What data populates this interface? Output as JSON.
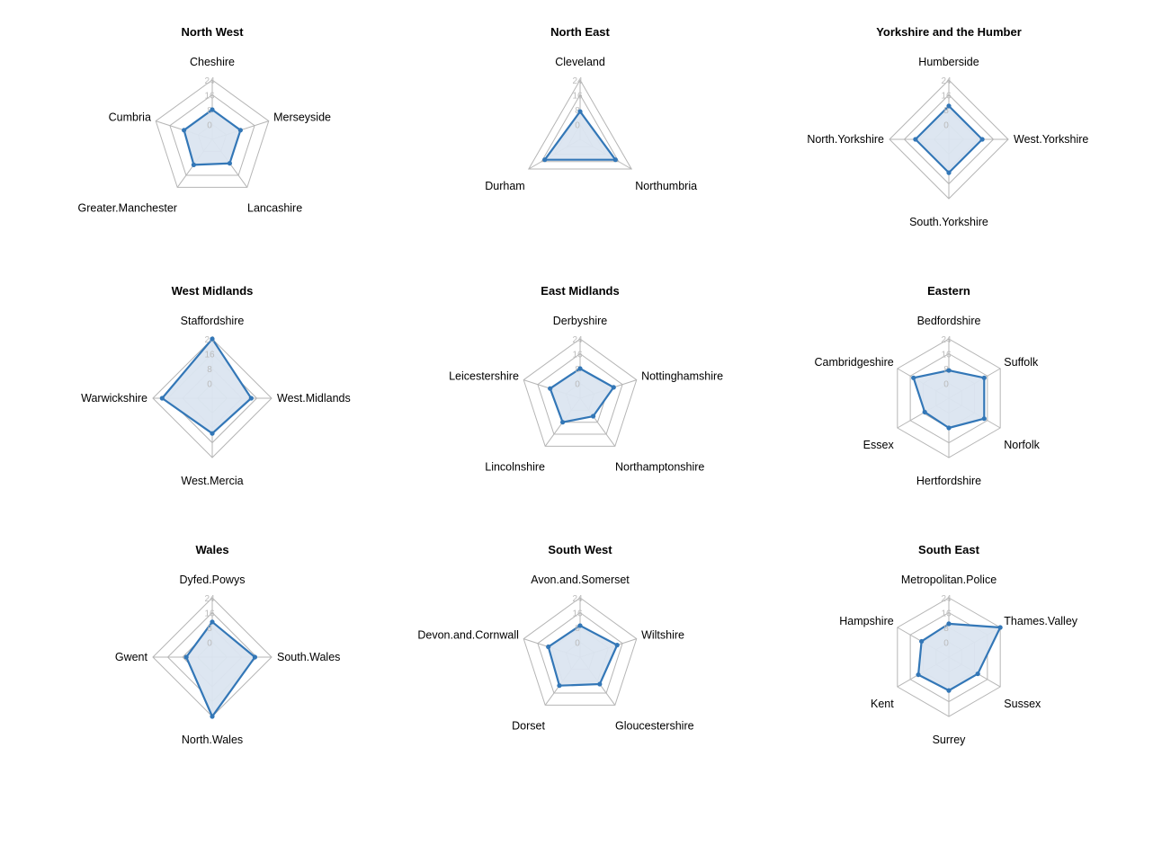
{
  "colors": {
    "series": "#3377b7",
    "fill": "#dbe5f0",
    "grid": "#b5b5b5",
    "tick": "#bbbbbb"
  },
  "chart_data": [
    {
      "type": "radar",
      "title": "North West",
      "rlim": [
        -8,
        24
      ],
      "ticks": [
        "0",
        "8",
        "16",
        "24"
      ],
      "axes": [
        "Cheshire",
        "Merseyside",
        "Lancashire",
        "Greater.Manchester",
        "Cumbria"
      ],
      "values": [
        8,
        8,
        8,
        9,
        8
      ]
    },
    {
      "type": "radar",
      "title": "North East",
      "rlim": [
        -8,
        24
      ],
      "ticks": [
        "0",
        "8",
        "16",
        "24"
      ],
      "axes": [
        "Cleveland",
        "Northumbria",
        "Durham"
      ],
      "values": [
        7,
        14,
        14
      ]
    },
    {
      "type": "radar",
      "title": "Yorkshire and the Humber",
      "rlim": [
        -8,
        24
      ],
      "ticks": [
        "0",
        "8",
        "16",
        "24"
      ],
      "axes": [
        "Humberside",
        "West.Yorkshire",
        "South.Yorkshire",
        "North.Yorkshire"
      ],
      "values": [
        10,
        10,
        10,
        10
      ]
    },
    {
      "type": "radar",
      "title": "West Midlands",
      "rlim": [
        -8,
        24
      ],
      "ticks": [
        "0",
        "8",
        "16",
        "24"
      ],
      "axes": [
        "Staffordshire",
        "West.Midlands",
        "West.Mercia",
        "Warwickshire"
      ],
      "values": [
        24,
        13,
        11,
        19
      ]
    },
    {
      "type": "radar",
      "title": "East Midlands",
      "rlim": [
        -8,
        24
      ],
      "ticks": [
        "0",
        "8",
        "16",
        "24"
      ],
      "axes": [
        "Derbyshire",
        "Nottinghamshire",
        "Northamptonshire",
        "Lincolnshire",
        "Leicestershire"
      ],
      "values": [
        8,
        11,
        4,
        8,
        9
      ]
    },
    {
      "type": "radar",
      "title": "Eastern",
      "rlim": [
        -8,
        24
      ],
      "ticks": [
        "0",
        "8",
        "16",
        "24"
      ],
      "axes": [
        "Bedfordshire",
        "Suffolk",
        "Norfolk",
        "Hertfordshire",
        "Essex",
        "Cambridgeshire"
      ],
      "values": [
        7,
        14,
        14,
        8,
        7,
        14
      ]
    },
    {
      "type": "radar",
      "title": "Wales",
      "rlim": [
        -8,
        24
      ],
      "ticks": [
        "0",
        "8",
        "16",
        "24"
      ],
      "axes": [
        "Dyfed.Powys",
        "South.Wales",
        "North.Wales",
        "Gwent"
      ],
      "values": [
        11,
        15,
        24,
        6
      ]
    },
    {
      "type": "radar",
      "title": "South West",
      "rlim": [
        -8,
        24
      ],
      "ticks": [
        "0",
        "8",
        "16",
        "24"
      ],
      "axes": [
        "Avon.and.Somerset",
        "Wiltshire",
        "Gloucestershire",
        "Dorset",
        "Devon.and.Cornwall"
      ],
      "values": [
        9,
        13,
        10,
        11,
        10
      ]
    },
    {
      "type": "radar",
      "title": "South East",
      "rlim": [
        -8,
        24
      ],
      "ticks": [
        "0",
        "8",
        "16",
        "24"
      ],
      "axes": [
        "Metropolitan.Police",
        "Thames.Valley",
        "Sussex",
        "Surrey",
        "Kent",
        "Hampshire"
      ],
      "values": [
        10,
        24,
        10,
        10,
        11,
        9
      ]
    }
  ]
}
